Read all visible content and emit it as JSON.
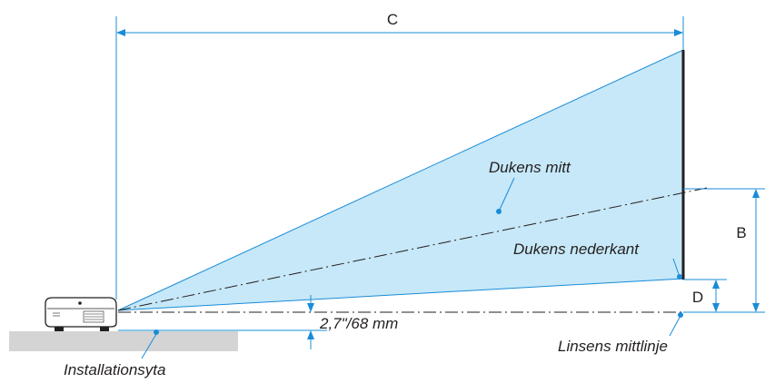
{
  "labels": {
    "dimension_c": "C",
    "dimension_b": "B",
    "dimension_d": "D",
    "screen_center": "Dukens mitt",
    "screen_bottom": "Dukens nederkant",
    "lens_offset": "2,7\"/68 mm",
    "lens_centerline": "Linsens mittlinje",
    "installation_surface": "Installationsyta"
  },
  "icons": {
    "projector": "projector-icon"
  },
  "colors": {
    "dimension_line": "#1a8cd8",
    "projection_fill": "#c6e8f8",
    "projection_outline": "#1a8cd8",
    "screen": "#231f20",
    "surface": "#d4d4d4",
    "text": "#231f20"
  }
}
